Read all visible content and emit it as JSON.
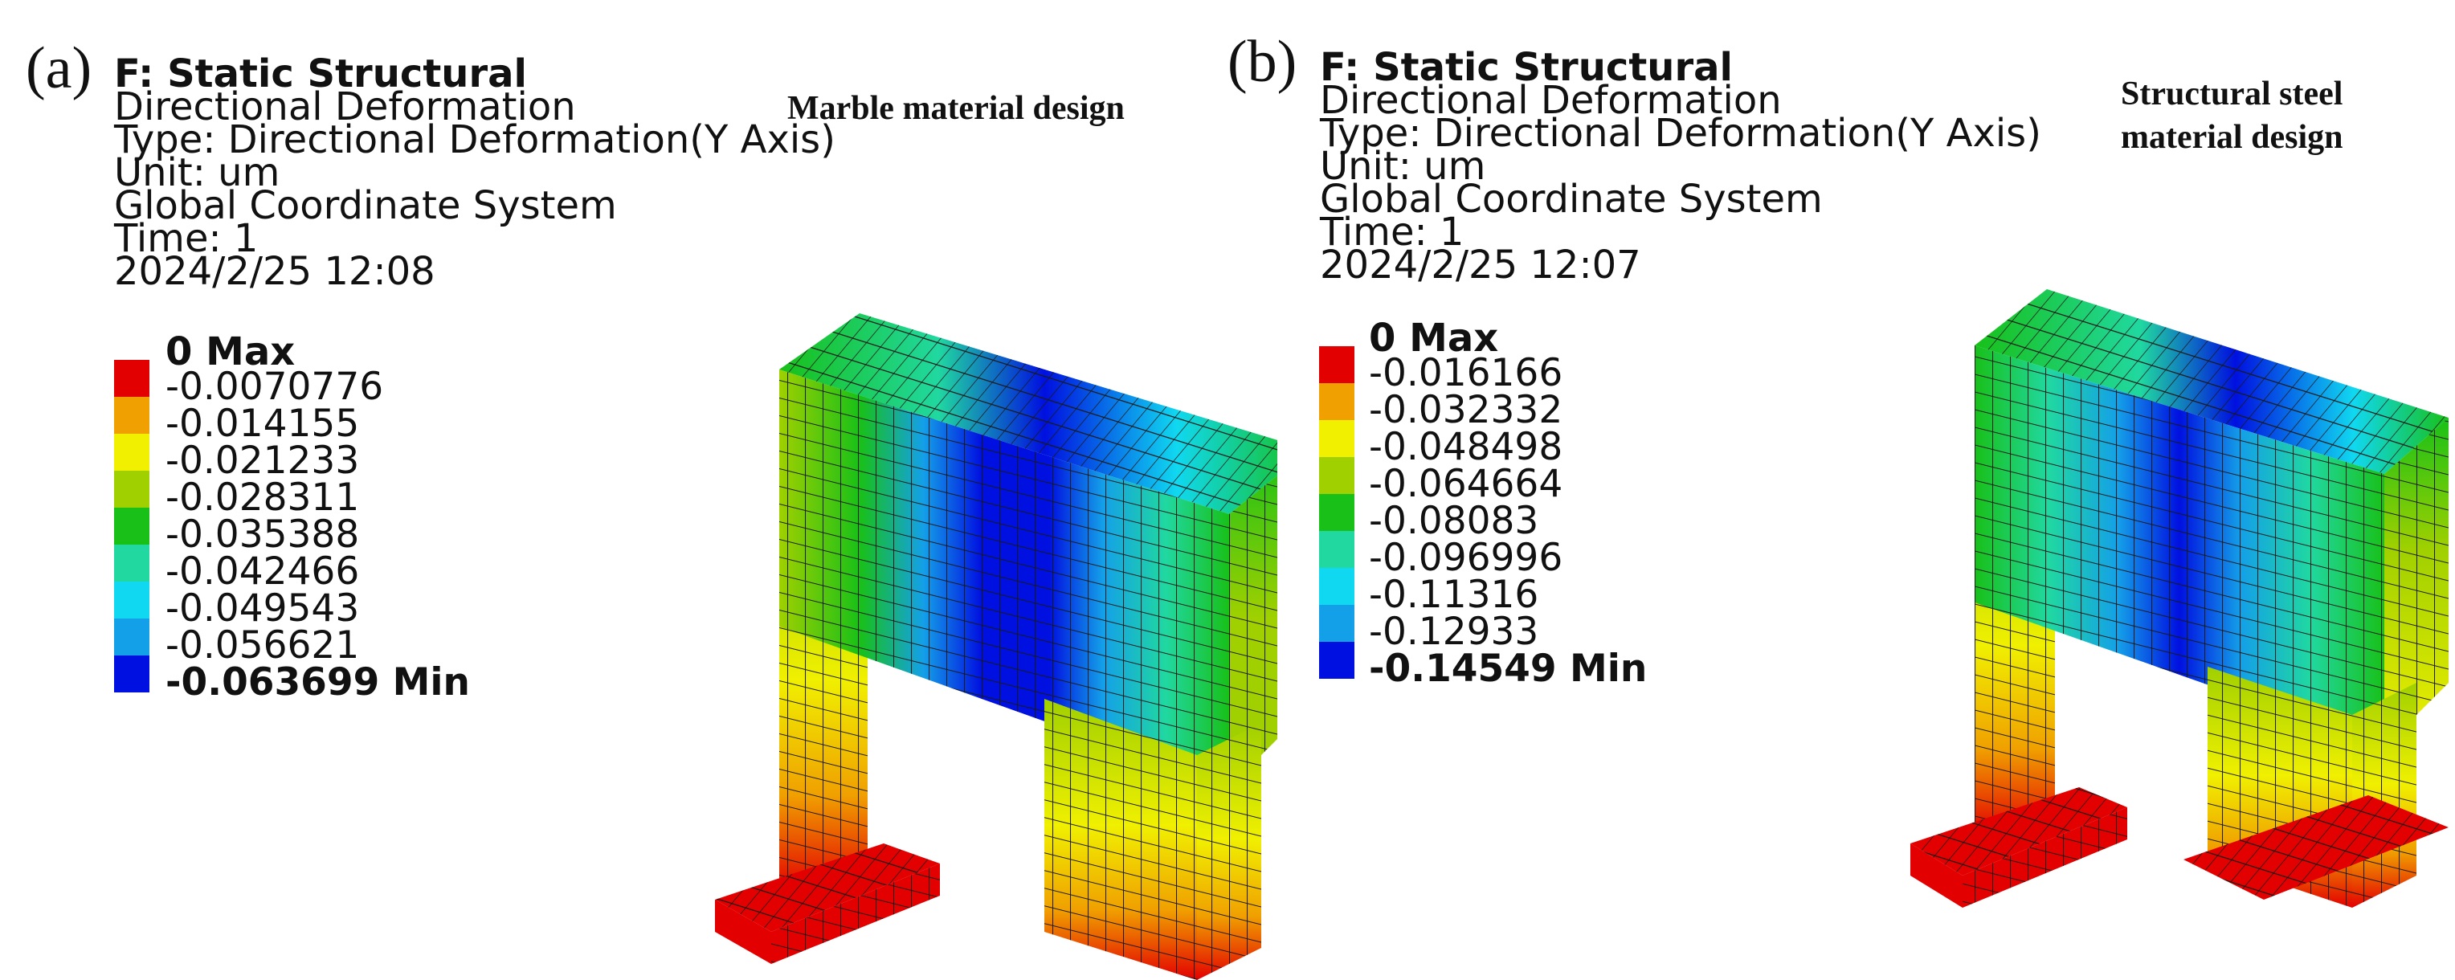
{
  "panels": [
    {
      "tag": "(a)",
      "title": "F: Static Structural",
      "result": "Directional Deformation",
      "type": "Type: Directional Deformation(Y Axis)",
      "unit": "Unit: um",
      "coord": "Global Coordinate System",
      "time": "Time: 1",
      "date": "2024/2/25 12:08",
      "design_lines": [
        "Marble material design"
      ],
      "legend": {
        "max_label": "0 Max",
        "ticks": [
          "-0.0070776",
          "-0.014155",
          "-0.021233",
          "-0.028311",
          "-0.035388",
          "-0.042466",
          "-0.049543",
          "-0.056621"
        ],
        "min_label": "-0.063699 Min"
      }
    },
    {
      "tag": "(b)",
      "title": "F: Static Structural",
      "result": "Directional Deformation",
      "type": "Type: Directional Deformation(Y Axis)",
      "unit": "Unit: um",
      "coord": "Global Coordinate System",
      "time": "Time: 1",
      "date": "2024/2/25 12:07",
      "design_lines": [
        "Structural steel",
        "material design"
      ],
      "legend": {
        "max_label": "0 Max",
        "ticks": [
          "-0.016166",
          "-0.032332",
          "-0.048498",
          "-0.064664",
          "-0.08083",
          "-0.096996",
          "-0.11316",
          "-0.12933"
        ],
        "min_label": "-0.14549 Min"
      }
    }
  ],
  "colors": {
    "scale": [
      "#e30000",
      "#f0a000",
      "#f0f000",
      "#a0d000",
      "#18c018",
      "#20d8a0",
      "#10d8f0",
      "#14a0e8",
      "#0010e0"
    ],
    "mesh_line": "#1a1a1a"
  }
}
